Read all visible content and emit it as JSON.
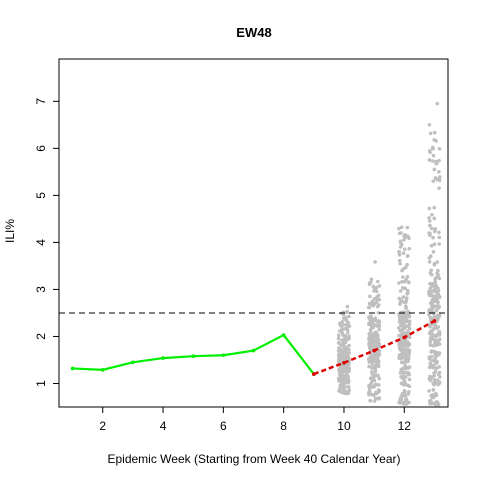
{
  "chart_data": {
    "type": "scatter",
    "title": "EW48",
    "xlabel": "Epidemic Week (Starting from Week 40 Calendar Year)",
    "ylabel": "ILI%",
    "xlim": [
      0.55,
      13.45
    ],
    "ylim": [
      0.5,
      7.9
    ],
    "x_ticks": [
      2,
      4,
      6,
      8,
      10,
      12
    ],
    "y_ticks": [
      1,
      2,
      3,
      4,
      5,
      6,
      7
    ],
    "grid": false,
    "reference_line": {
      "y": 2.5,
      "style": "dashed",
      "color": "#000000"
    },
    "series": [
      {
        "kind": "observed",
        "color": "#00ee00",
        "style": "solid",
        "points": [
          {
            "x": 1,
            "y": 1.32
          },
          {
            "x": 2,
            "y": 1.29
          },
          {
            "x": 3,
            "y": 1.45
          },
          {
            "x": 4,
            "y": 1.54
          },
          {
            "x": 5,
            "y": 1.58
          },
          {
            "x": 6,
            "y": 1.6
          },
          {
            "x": 7,
            "y": 1.7
          },
          {
            "x": 8,
            "y": 2.03
          },
          {
            "x": 9,
            "y": 1.2
          }
        ]
      },
      {
        "kind": "forecast-median",
        "color": "#dd0000",
        "style": "dashed",
        "points": [
          {
            "x": 9,
            "y": 1.2
          },
          {
            "x": 10,
            "y": 1.44
          },
          {
            "x": 11,
            "y": 1.7
          },
          {
            "x": 12,
            "y": 1.98
          },
          {
            "x": 13,
            "y": 2.33
          }
        ]
      }
    ],
    "forecast_samples": {
      "color": "#bfbfbf",
      "columns": [
        {
          "x": 10,
          "min": 0.78,
          "q1": 1.25,
          "median": 1.44,
          "q3": 1.65,
          "max": 2.75
        },
        {
          "x": 11,
          "min": 0.62,
          "q1": 1.45,
          "median": 1.7,
          "q3": 2.05,
          "max": 3.65
        },
        {
          "x": 12,
          "min": 0.55,
          "q1": 1.6,
          "median": 1.98,
          "q3": 2.45,
          "max": 5.0
        },
        {
          "x": 13,
          "min": 0.55,
          "q1": 1.7,
          "median": 2.33,
          "q3": 3.0,
          "max": 7.65
        }
      ]
    }
  }
}
